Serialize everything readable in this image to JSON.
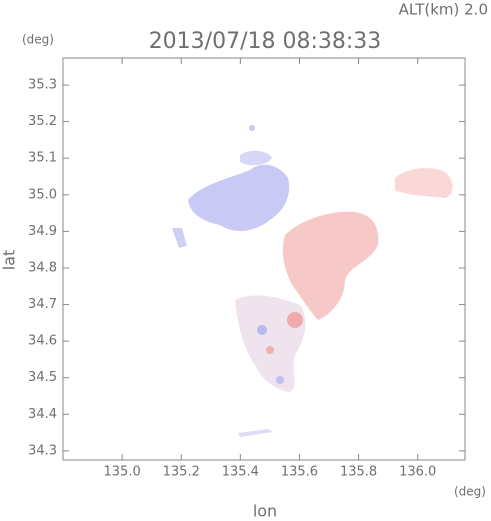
{
  "chart_data": {
    "type": "map",
    "title": "2013/07/18 08:38:33",
    "subtitle": "ALT(km) 2.0",
    "x_label": "lon",
    "y_label": "lat",
    "x_unit": "(deg)",
    "y_unit": "(deg)",
    "xlim": [
      134.8,
      136.16
    ],
    "ylim": [
      34.275,
      35.374
    ],
    "xticks": [
      {
        "value": 135,
        "label": "135.0"
      },
      135.2,
      135.4,
      135.6,
      135.8,
      {
        "value": 136,
        "label": "136.0"
      }
    ],
    "yticks": [
      35.3,
      35.2,
      35.1,
      {
        "value": 35,
        "label": "35.0"
      },
      34.9,
      34.8,
      34.7,
      34.6,
      34.5,
      34.4,
      34.3
    ]
  }
}
